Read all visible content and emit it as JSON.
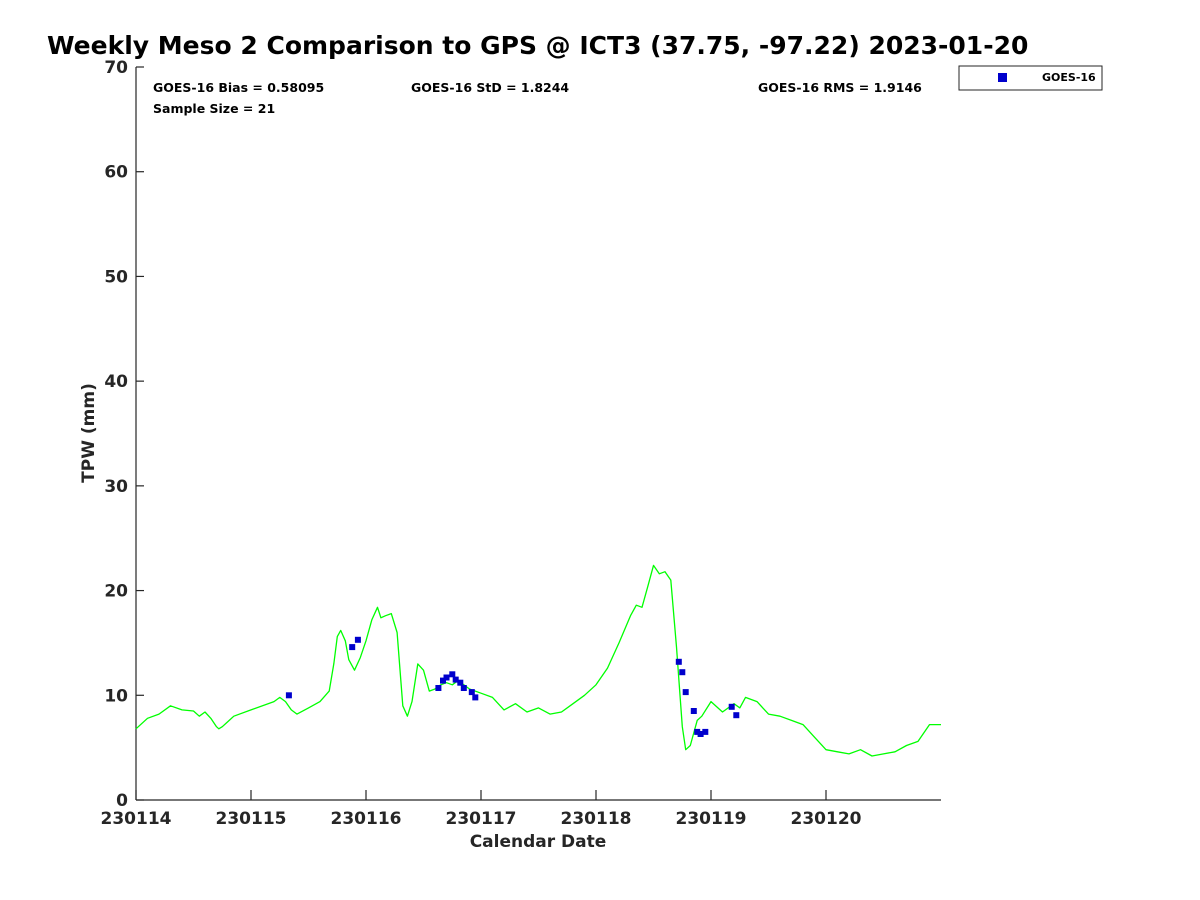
{
  "chart_data": {
    "type": "scatter",
    "title": "Weekly Meso 2 Comparison to GPS @ ICT3 (37.75, -97.22) 2023-01-20",
    "xlabel": "Calendar Date",
    "ylabel": "TPW (mm)",
    "xlim": [
      0,
      7.0
    ],
    "ylim": [
      0,
      70
    ],
    "x_ticks": [
      {
        "value": 0,
        "label": "230114"
      },
      {
        "value": 1,
        "label": "230115"
      },
      {
        "value": 2,
        "label": "230116"
      },
      {
        "value": 3,
        "label": "230117"
      },
      {
        "value": 4,
        "label": "230118"
      },
      {
        "value": 5,
        "label": "230119"
      },
      {
        "value": 6,
        "label": "230120"
      }
    ],
    "y_ticks": [
      0,
      10,
      20,
      30,
      40,
      50,
      60,
      70
    ],
    "grid": false,
    "legend": {
      "position": "outside-top-right",
      "entries": [
        "GOES-16"
      ]
    },
    "stats": {
      "bias": "GOES-16 Bias = 0.58095",
      "std": "GOES-16 StD = 1.8244",
      "rms": "GOES-16 RMS = 1.9146",
      "sample": "Sample Size = 21"
    },
    "series": [
      {
        "name": "GOES-16",
        "kind": "points",
        "color": "#0000cc",
        "x": [
          1.33,
          1.88,
          1.93,
          2.63,
          2.67,
          2.7,
          2.75,
          2.78,
          2.82,
          2.85,
          2.92,
          2.95,
          4.72,
          4.75,
          4.78,
          4.85,
          4.88,
          4.91,
          4.95,
          5.18,
          5.22
        ],
        "y": [
          10.0,
          14.6,
          15.3,
          10.7,
          11.4,
          11.7,
          12.0,
          11.5,
          11.2,
          10.7,
          10.3,
          9.8,
          13.2,
          12.2,
          10.3,
          8.5,
          6.5,
          6.3,
          6.5,
          8.9,
          8.1
        ]
      },
      {
        "kind": "line",
        "color": "#00ff00",
        "x": [
          0,
          0.1,
          0.2,
          0.3,
          0.4,
          0.5,
          0.55,
          0.6,
          0.65,
          0.7,
          0.72,
          0.75,
          0.8,
          0.85,
          1.0,
          1.2,
          1.25,
          1.3,
          1.35,
          1.4,
          1.5,
          1.6,
          1.68,
          1.72,
          1.75,
          1.78,
          1.82,
          1.85,
          1.9,
          1.95,
          2.0,
          2.05,
          2.1,
          2.13,
          2.17,
          2.22,
          2.27,
          2.32,
          2.36,
          2.4,
          2.45,
          2.5,
          2.55,
          2.6,
          2.65,
          2.7,
          2.75,
          2.8,
          2.85,
          2.9,
          3.0,
          3.1,
          3.2,
          3.3,
          3.4,
          3.5,
          3.6,
          3.7,
          3.8,
          3.9,
          4.0,
          4.1,
          4.2,
          4.3,
          4.35,
          4.4,
          4.45,
          4.5,
          4.55,
          4.6,
          4.65,
          4.7,
          4.75,
          4.78,
          4.82,
          4.88,
          4.92,
          5.0,
          5.1,
          5.2,
          5.25,
          5.3,
          5.4,
          5.5,
          5.6,
          5.7,
          5.8,
          5.9,
          6.0,
          6.1,
          6.2,
          6.3,
          6.4,
          6.5,
          6.6,
          6.7,
          6.8,
          6.9,
          7.0
        ],
        "y": [
          6.8,
          7.8,
          8.2,
          9.0,
          8.6,
          8.5,
          8.0,
          8.4,
          7.8,
          7.0,
          6.8,
          7.0,
          7.5,
          8.0,
          8.6,
          9.4,
          9.8,
          9.4,
          8.6,
          8.2,
          8.8,
          9.4,
          10.4,
          13.0,
          15.6,
          16.2,
          15.2,
          13.4,
          12.4,
          13.6,
          15.2,
          17.2,
          18.4,
          17.4,
          17.6,
          17.8,
          16.0,
          9.0,
          8.0,
          9.4,
          13.0,
          12.4,
          10.4,
          10.6,
          11.0,
          11.2,
          11.0,
          11.4,
          11.0,
          10.6,
          10.2,
          9.8,
          8.6,
          9.2,
          8.4,
          8.8,
          8.2,
          8.4,
          9.2,
          10.0,
          11.0,
          12.6,
          15.0,
          17.6,
          18.6,
          18.4,
          20.4,
          22.4,
          21.6,
          21.8,
          21.0,
          14.6,
          7.0,
          4.8,
          5.2,
          7.6,
          8.0,
          9.4,
          8.4,
          9.2,
          8.8,
          9.8,
          9.4,
          8.2,
          8.0,
          7.6,
          7.2,
          6.0,
          4.8,
          4.6,
          4.4,
          4.8,
          4.2,
          4.4,
          4.6,
          5.2,
          5.6,
          7.2,
          7.2
        ]
      }
    ]
  }
}
